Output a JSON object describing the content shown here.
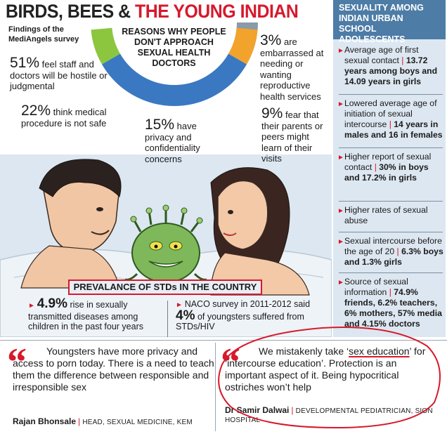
{
  "title": {
    "part1": "BIRDS, BEES & ",
    "part2": "THE YOUNG INDIAN"
  },
  "findings_label": "Findings of the MediAngels survey",
  "reasons_title": "REASONS WHY PEOPLE DON'T APPROACH SEXUAL HEALTH DOCTORS",
  "stats": [
    {
      "value": "51%",
      "text": " feel staff and doctors will be hostile or judgmental"
    },
    {
      "value": "22%",
      "text": " think medical procedure is not safe"
    },
    {
      "value": "15%",
      "text": " have privacy and confidentiality concerns"
    },
    {
      "value": "3%",
      "text": " are embarrassed at needing or wanting reproductive health services"
    },
    {
      "value": "9%",
      "text": " fear that their parents or peers might learn of their visits"
    }
  ],
  "colors": {
    "red": "#d7192c",
    "blue_header": "#4d7ca6",
    "donut_blue": "#3a78c2",
    "donut_orange": "#f2a32c",
    "donut_green": "#8cc63f",
    "donut_grey": "#8b9aa8"
  },
  "std_title": "PREVALANCE OF STDs IN THE COUNTRY",
  "std_stats": [
    {
      "big": "4.9%",
      "text": " rise in sexually transmitted diseases among children in the past four years"
    },
    {
      "lead": "NACO survey in 2011-2012 said ",
      "big": "4%",
      "text": " of youngsters suffered from STDs/HIV"
    }
  ],
  "sidebar": {
    "heading": "SEXUALITY AMONG INDIAN URBAN SCHOOL ADOLESCENTS",
    "items": [
      {
        "text": "Average age of first sexual contact ",
        "bold": "13.72 years among boys and 14.09 years in girls"
      },
      {
        "text": "Lowered average age of initiation of sexual intercourse ",
        "bold": "14 years in males and 16 in females"
      },
      {
        "text": "Higher report of sexual contact ",
        "bold": "30% in boys and 17.2% in girls"
      },
      {
        "text": "Higher rates of sexual abuse",
        "bold": ""
      },
      {
        "text": "Sexual intercourse before the age of 20 ",
        "bold": "6.3% boys and 1.3% girls"
      },
      {
        "text": "Source of sexual information ",
        "bold": "74.9% friends, 6.2% teachers, 6% mothers, 57% media and 4.15% doctors"
      }
    ]
  },
  "quotes": [
    {
      "text": "Youngsters have more privacy and access to porn today. There is a need to teach them the difference between responsible and irresponsible sex",
      "name": "Rajan Bhonsale",
      "role": "HEAD, SEXUAL MEDICINE, KEM"
    },
    {
      "text_pre": "We mistakenly take ‘",
      "text_underlined": "sex education",
      "text_post": "’ for ‘intercourse education’. Protection is an important aspect of it. Being hypocritical ostriches won’t help",
      "name": "Dr Samir Dalwai",
      "role": "DEVELOPMENTAL PEDIATRICIAN, SION HOSPITAL"
    }
  ]
}
